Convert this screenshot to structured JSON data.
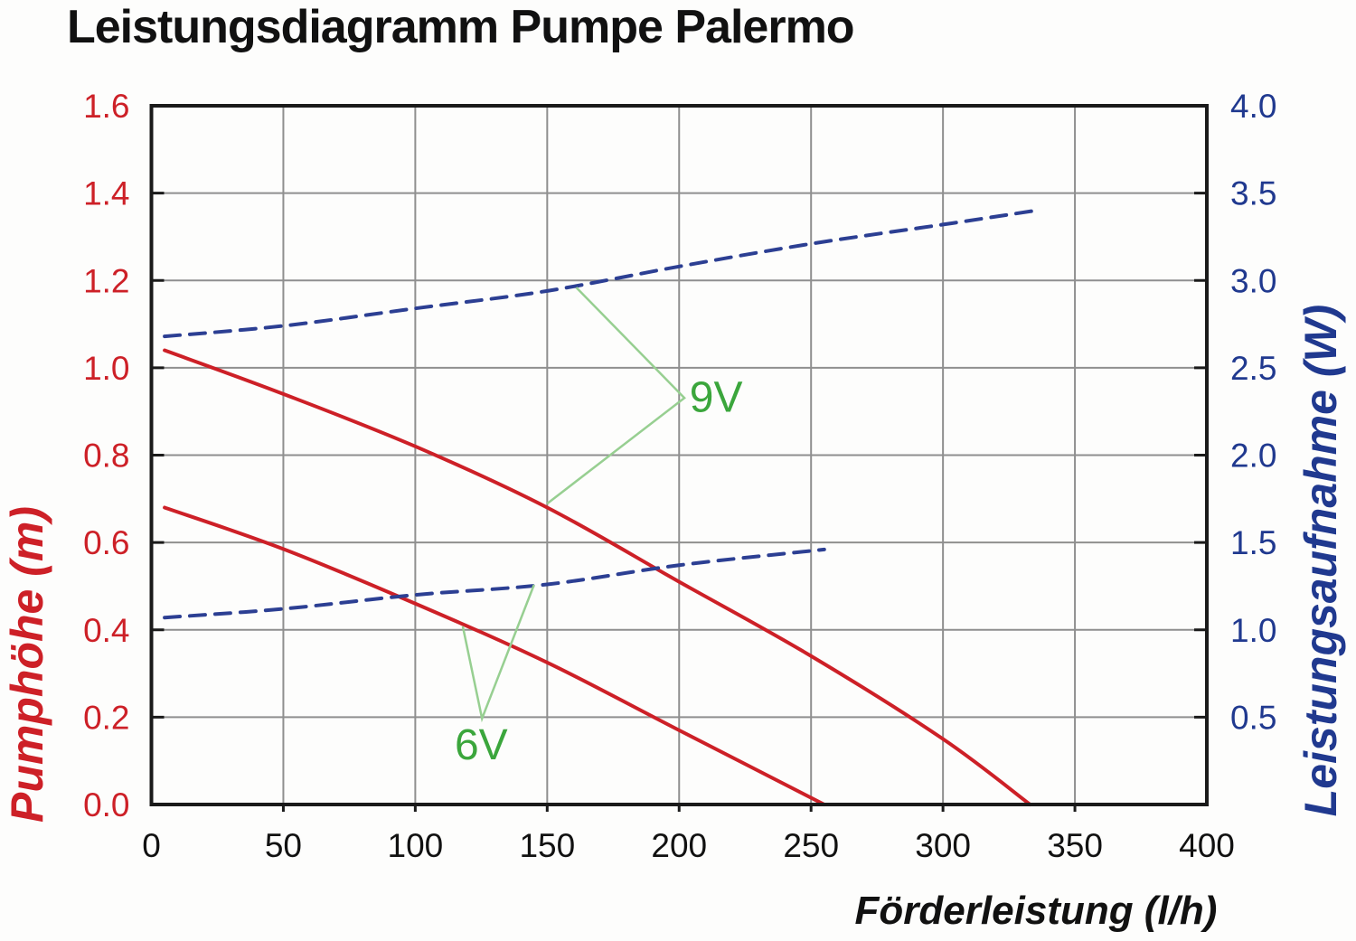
{
  "title": "Leistungsdiagramm Pumpe Palermo",
  "colors": {
    "red": "#cd2027",
    "blue": "#2c3f93",
    "blue_text": "#20398f",
    "green": "#3ba63c",
    "green_line": "#97cf91",
    "grid": "#8f8f8f",
    "border": "#1a1a1a",
    "title_text": "#111111"
  },
  "chart_data": {
    "type": "line",
    "title": "Leistungsdiagramm Pumpe Palermo",
    "xlabel": "Förderleistung (l/h)",
    "ylabel_left": "Pumphöhe (m)",
    "ylabel_right": "Leistungsaufnahme (W)",
    "xlim": [
      0,
      400
    ],
    "ylim_left": [
      0,
      1.6
    ],
    "ylim_right": [
      0,
      4.0
    ],
    "grid": true,
    "x_ticks": [
      "0",
      "50",
      "100",
      "150",
      "200",
      "250",
      "300",
      "350",
      "400"
    ],
    "y_ticks_left": [
      "1.6",
      "1.4",
      "1.2",
      "1.0",
      "0.8",
      "0.6",
      "0.4",
      "0.2",
      "0.0"
    ],
    "y_ticks_left_values": [
      1.6,
      1.4,
      1.2,
      1.0,
      0.8,
      0.6,
      0.4,
      0.2,
      0.0
    ],
    "y_ticks_right": [
      "4.0",
      "3.5",
      "3.0",
      "2.5",
      "2.0",
      "1.5",
      "1.0",
      "0.5"
    ],
    "y_ticks_right_values": [
      4.0,
      3.5,
      3.0,
      2.5,
      2.0,
      1.5,
      1.0,
      0.5
    ],
    "series": [
      {
        "name": "Pumphöhe 9V",
        "axis": "left",
        "style": "solid",
        "color": "#cd2027",
        "points": [
          [
            5,
            1.04
          ],
          [
            50,
            0.94
          ],
          [
            100,
            0.82
          ],
          [
            150,
            0.68
          ],
          [
            200,
            0.51
          ],
          [
            250,
            0.34
          ],
          [
            300,
            0.15
          ],
          [
            333,
            0.0
          ]
        ]
      },
      {
        "name": "Pumphöhe 6V",
        "axis": "left",
        "style": "solid",
        "color": "#cd2027",
        "points": [
          [
            5,
            0.68
          ],
          [
            50,
            0.585
          ],
          [
            100,
            0.46
          ],
          [
            150,
            0.325
          ],
          [
            200,
            0.17
          ],
          [
            255,
            0.0
          ]
        ]
      },
      {
        "name": "Leistungsaufnahme 9V",
        "axis": "right",
        "style": "dashed",
        "color": "#2c3f93",
        "points": [
          [
            5,
            2.68
          ],
          [
            50,
            2.74
          ],
          [
            100,
            2.84
          ],
          [
            150,
            2.94
          ],
          [
            200,
            3.08
          ],
          [
            250,
            3.21
          ],
          [
            300,
            3.32
          ],
          [
            335,
            3.4
          ]
        ]
      },
      {
        "name": "Leistungsaufnahme 6V",
        "axis": "right",
        "style": "dashed",
        "color": "#2c3f93",
        "points": [
          [
            5,
            1.07
          ],
          [
            50,
            1.12
          ],
          [
            100,
            1.2
          ],
          [
            150,
            1.26
          ],
          [
            200,
            1.37
          ],
          [
            255,
            1.46
          ]
        ]
      }
    ],
    "annotations": [
      {
        "label": "9V",
        "label_at": {
          "q": 214,
          "h": 0.935
        },
        "polyline": [
          {
            "q": 161,
            "h": 1.184
          },
          {
            "q": 202,
            "h": 0.931
          },
          {
            "q": 150,
            "h": 0.689
          }
        ]
      },
      {
        "label": "6V",
        "label_at": {
          "q": 125,
          "h": 0.139
        },
        "polyline": [
          {
            "q": 118,
            "h": 0.408
          },
          {
            "q": 125.3,
            "h": 0.197
          },
          {
            "q": 145,
            "h": 0.503
          }
        ]
      }
    ]
  }
}
